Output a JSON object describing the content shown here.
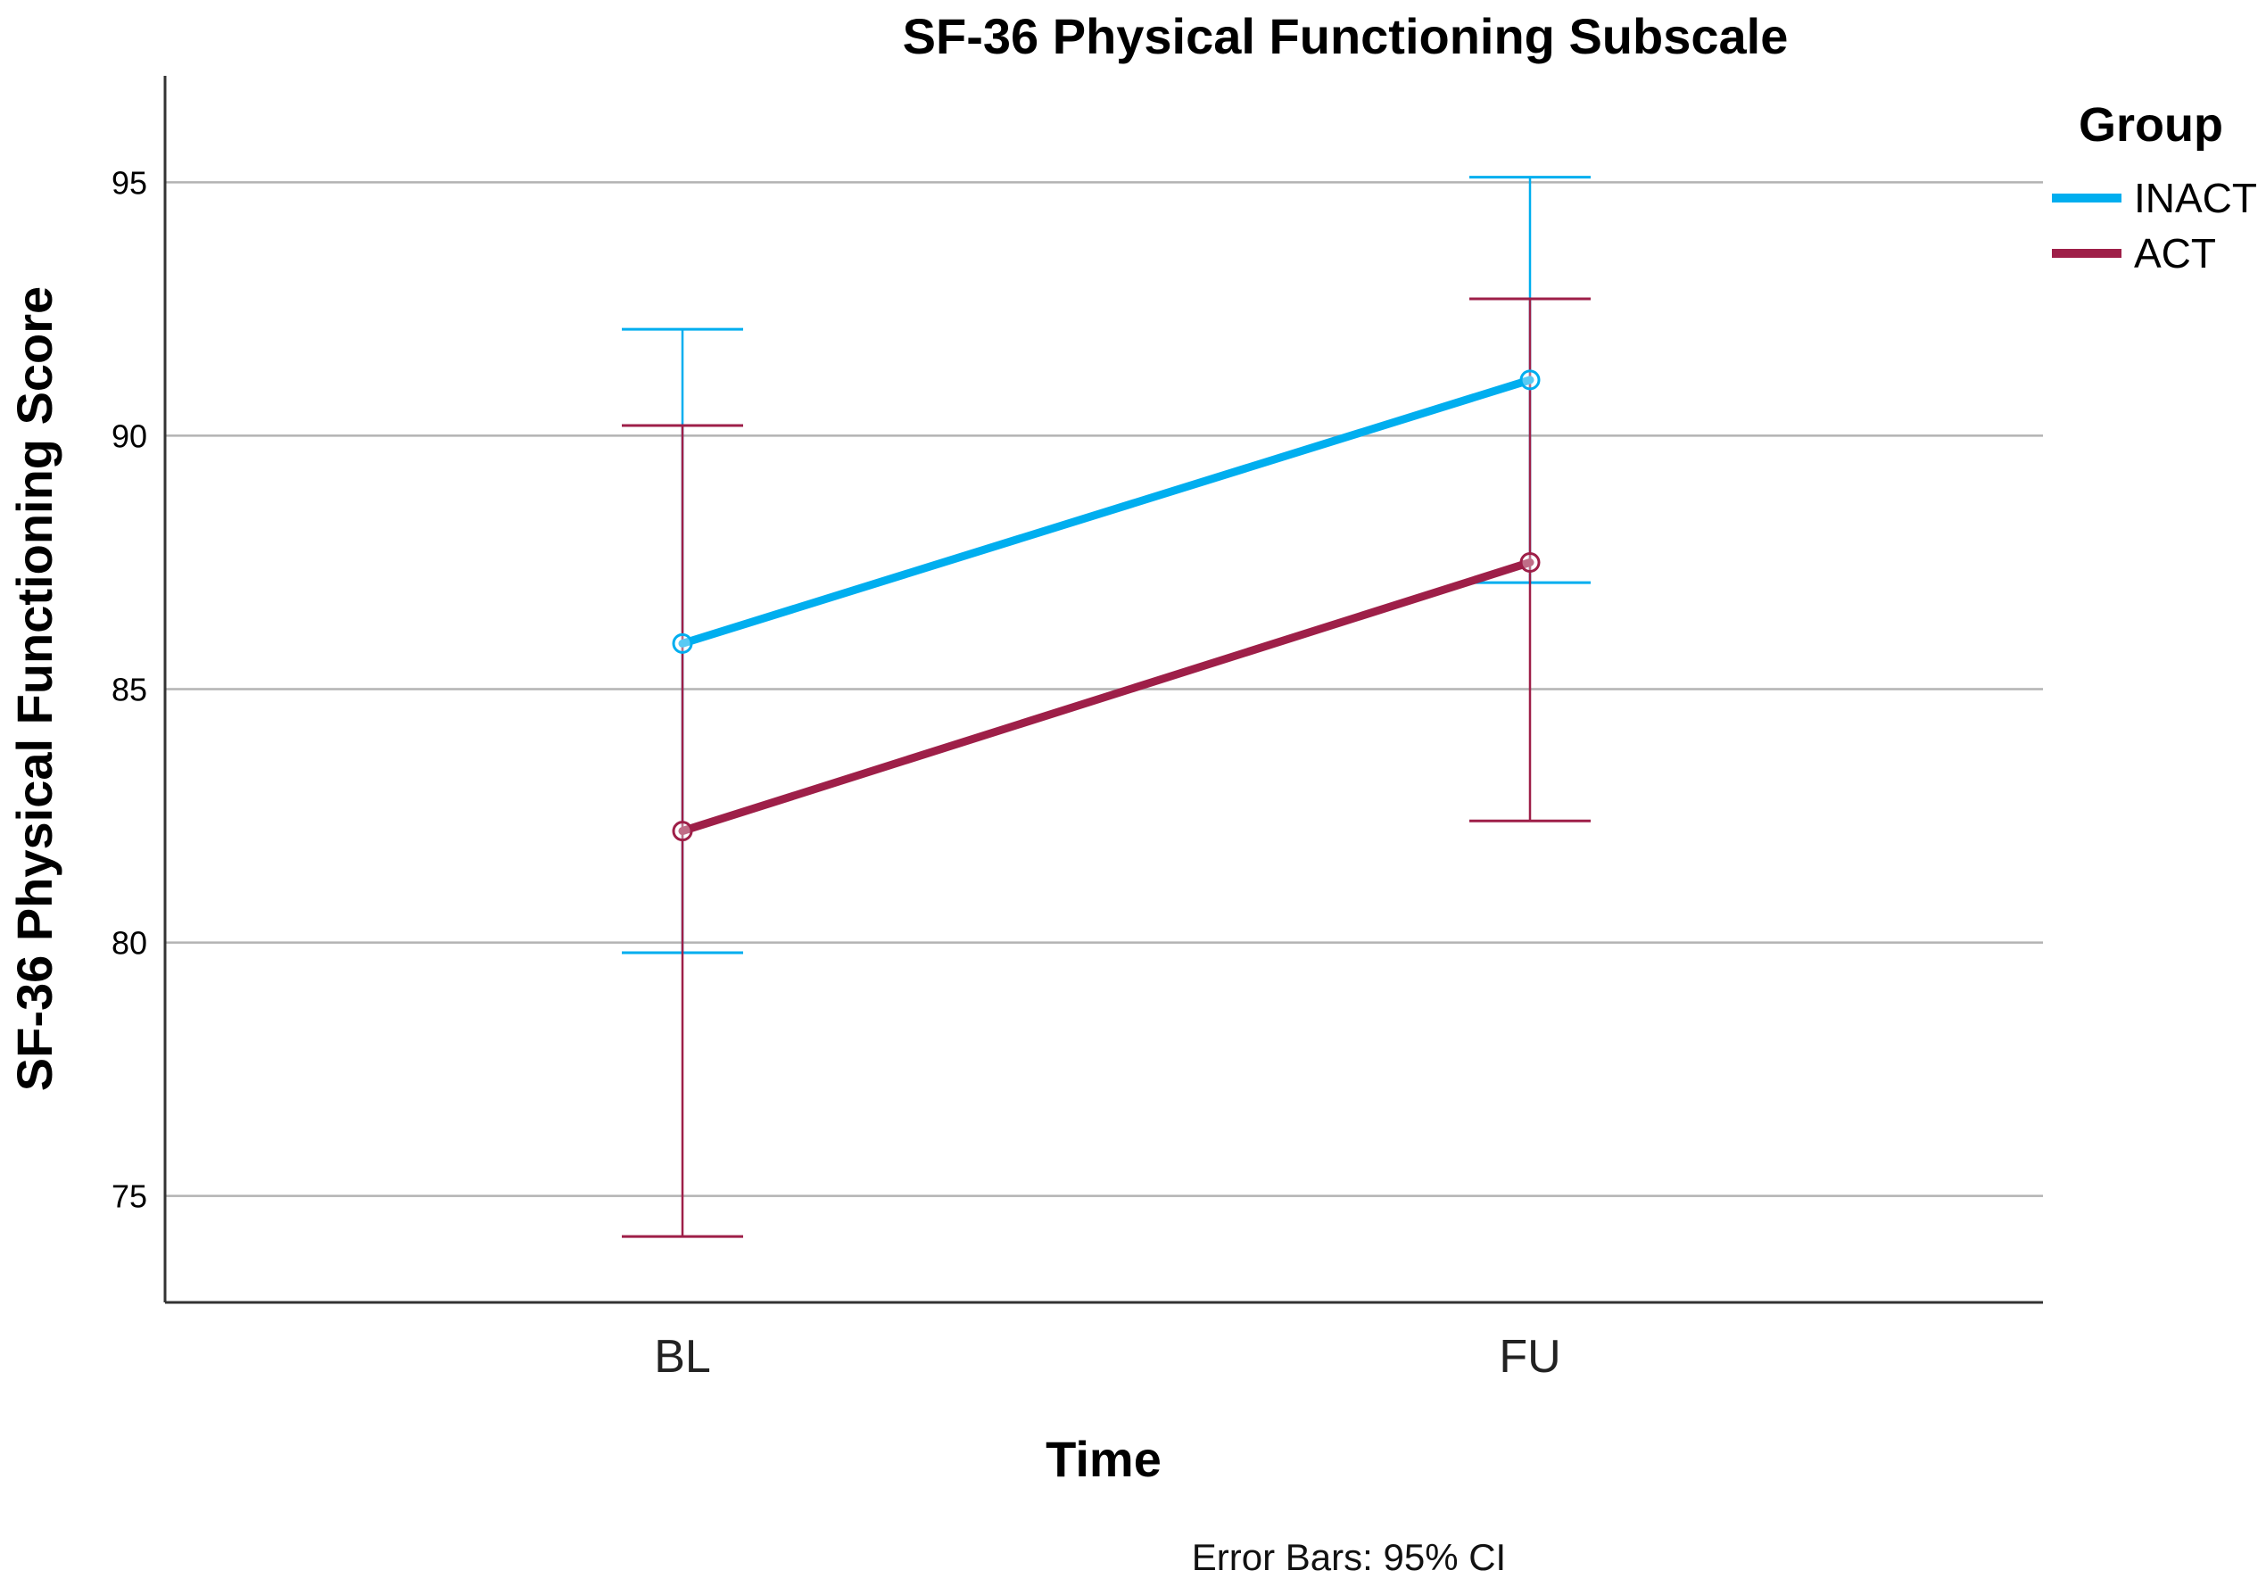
{
  "chart_data": {
    "type": "line",
    "title": "SF-36 Physical Functioning Subscale",
    "xlabel": "Time",
    "ylabel": "SF-36 Physical Functioning Score",
    "categories": [
      "BL",
      "FU"
    ],
    "ylim": [
      72.9,
      97.1
    ],
    "yticks": [
      75,
      80,
      85,
      90,
      95
    ],
    "yticks_labels": [
      "75",
      "80",
      "85",
      "90",
      "95"
    ],
    "grid": true,
    "legend_title": "Group",
    "legend_position": "top-right",
    "footnote": "Error Bars: 95% CI",
    "series": [
      {
        "name": "INACT",
        "color": "#00AEEF",
        "values": [
          85.9,
          91.1
        ],
        "ci_lower": [
          79.8,
          87.1
        ],
        "ci_upper": [
          92.1,
          95.1
        ]
      },
      {
        "name": "ACT",
        "color": "#9E1F48",
        "values": [
          82.2,
          87.5
        ],
        "ci_lower": [
          74.2,
          82.4
        ],
        "ci_upper": [
          90.2,
          92.7
        ]
      }
    ]
  }
}
